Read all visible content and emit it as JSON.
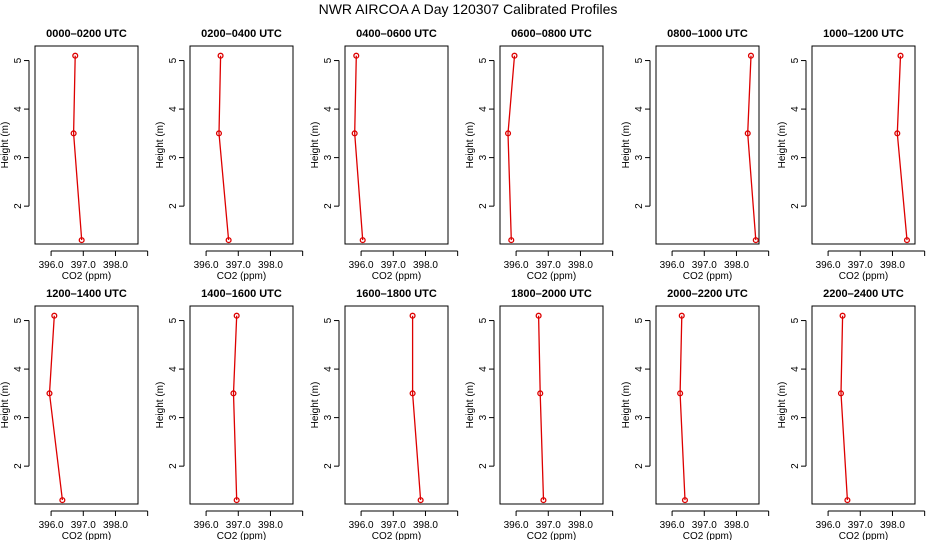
{
  "title": "NWR AIRCOA A  Day 120307  Calibrated Profiles",
  "chart_data": {
    "type": "line",
    "xlabel": "CO2 (ppm)",
    "ylabel": "Height (m)",
    "xticks": [
      "396.0",
      "397.0",
      "398.0"
    ],
    "ytick_values": [
      2,
      3,
      4,
      5
    ],
    "yticks": [
      "2",
      "3",
      "4",
      "5"
    ],
    "line_color": "#dd0000",
    "panels": [
      {
        "title": "0000–0200 UTC",
        "xlim": [
          395.5,
          398.7
        ],
        "ylim": [
          1.22,
          5.3
        ],
        "points": [
          [
            396.75,
            5.1
          ],
          [
            396.7,
            3.5
          ],
          [
            396.95,
            1.3
          ]
        ]
      },
      {
        "title": "0200–0400 UTC",
        "xlim": [
          395.5,
          398.7
        ],
        "ylim": [
          1.22,
          5.3
        ],
        "points": [
          [
            396.45,
            5.1
          ],
          [
            396.4,
            3.5
          ],
          [
            396.7,
            1.3
          ]
        ]
      },
      {
        "title": "0400–0600 UTC",
        "xlim": [
          395.5,
          398.7
        ],
        "ylim": [
          1.22,
          5.3
        ],
        "points": [
          [
            395.85,
            5.1
          ],
          [
            395.8,
            3.5
          ],
          [
            396.05,
            1.3
          ]
        ]
      },
      {
        "title": "0600–0800 UTC",
        "xlim": [
          395.5,
          398.7
        ],
        "ylim": [
          1.22,
          5.3
        ],
        "points": [
          [
            395.95,
            5.1
          ],
          [
            395.75,
            3.5
          ],
          [
            395.85,
            1.3
          ]
        ]
      },
      {
        "title": "0800–1000 UTC",
        "xlim": [
          395.5,
          398.7
        ],
        "ylim": [
          1.22,
          5.3
        ],
        "points": [
          [
            398.45,
            5.1
          ],
          [
            398.35,
            3.5
          ],
          [
            398.6,
            1.3
          ]
        ]
      },
      {
        "title": "1000–1200 UTC",
        "xlim": [
          395.5,
          398.7
        ],
        "ylim": [
          1.22,
          5.3
        ],
        "points": [
          [
            398.25,
            5.1
          ],
          [
            398.15,
            3.5
          ],
          [
            398.45,
            1.3
          ]
        ]
      },
      {
        "title": "1200–1400 UTC",
        "xlim": [
          395.5,
          398.7
        ],
        "ylim": [
          1.22,
          5.3
        ],
        "points": [
          [
            396.1,
            5.1
          ],
          [
            395.95,
            3.5
          ],
          [
            396.35,
            1.3
          ]
        ]
      },
      {
        "title": "1400–1600 UTC",
        "xlim": [
          395.5,
          398.7
        ],
        "ylim": [
          1.22,
          5.3
        ],
        "points": [
          [
            396.95,
            5.1
          ],
          [
            396.85,
            3.5
          ],
          [
            396.95,
            1.3
          ]
        ]
      },
      {
        "title": "1600–1800 UTC",
        "xlim": [
          395.5,
          398.7
        ],
        "ylim": [
          1.22,
          5.3
        ],
        "points": [
          [
            397.6,
            5.1
          ],
          [
            397.6,
            3.5
          ],
          [
            397.85,
            1.3
          ]
        ]
      },
      {
        "title": "1800–2000 UTC",
        "xlim": [
          395.5,
          398.7
        ],
        "ylim": [
          1.22,
          5.3
        ],
        "points": [
          [
            396.7,
            5.1
          ],
          [
            396.75,
            3.5
          ],
          [
            396.85,
            1.3
          ]
        ]
      },
      {
        "title": "2000–2200 UTC",
        "xlim": [
          395.5,
          398.7
        ],
        "ylim": [
          1.22,
          5.3
        ],
        "points": [
          [
            396.3,
            5.1
          ],
          [
            396.25,
            3.5
          ],
          [
            396.4,
            1.3
          ]
        ]
      },
      {
        "title": "2200–2400 UTC",
        "xlim": [
          395.5,
          398.7
        ],
        "ylim": [
          1.22,
          5.3
        ],
        "points": [
          [
            396.45,
            5.1
          ],
          [
            396.4,
            3.5
          ],
          [
            396.6,
            1.3
          ]
        ]
      }
    ]
  }
}
